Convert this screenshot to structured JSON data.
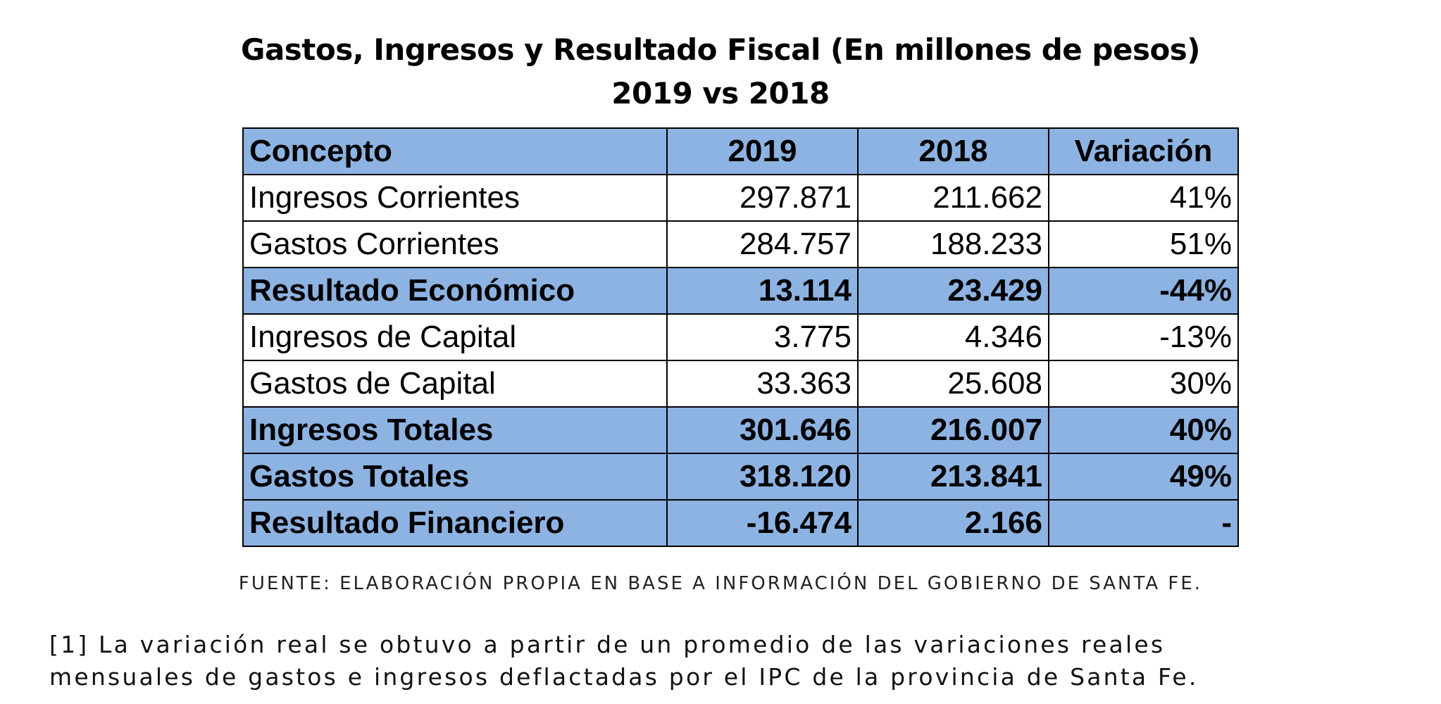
{
  "title": {
    "line1": "Gastos, Ingresos y Resultado Fiscal (En millones de pesos)",
    "line2": "2019 vs 2018"
  },
  "chart_data": {
    "type": "table",
    "columns": [
      "Concepto",
      "2019",
      "2018",
      "Variación"
    ],
    "rows": [
      {
        "concepto": "Ingresos Corrientes",
        "y2019": "297.871",
        "y2018": "211.662",
        "variacion": "41%",
        "highlight": false
      },
      {
        "concepto": "Gastos Corrientes",
        "y2019": "284.757",
        "y2018": "188.233",
        "variacion": "51%",
        "highlight": false
      },
      {
        "concepto": "Resultado Económico",
        "y2019": "13.114",
        "y2018": "23.429",
        "variacion": "-44%",
        "highlight": true
      },
      {
        "concepto": "Ingresos de Capital",
        "y2019": "3.775",
        "y2018": "4.346",
        "variacion": "-13%",
        "highlight": false
      },
      {
        "concepto": "Gastos de Capital",
        "y2019": "33.363",
        "y2018": "25.608",
        "variacion": "30%",
        "highlight": false
      },
      {
        "concepto": "Ingresos Totales",
        "y2019": "301.646",
        "y2018": "216.007",
        "variacion": "40%",
        "highlight": true
      },
      {
        "concepto": "Gastos Totales",
        "y2019": "318.120",
        "y2018": "213.841",
        "variacion": "49%",
        "highlight": true
      },
      {
        "concepto": "Resultado Financiero",
        "y2019": "-16.474",
        "y2018": "2.166",
        "variacion": "-",
        "highlight": true
      }
    ]
  },
  "source": "FUENTE: ELABORACIÓN PROPIA EN BASE A INFORMACIÓN DEL GOBIERNO DE SANTA FE.",
  "footnote": {
    "line1": "[1] La variación real se obtuvo a partir de un promedio de las variaciones reales",
    "line2": "mensuales de gastos e ingresos deflactadas por el IPC de la provincia de Santa Fe."
  },
  "colors": {
    "header_fill": "#8db3e2",
    "border": "#000000"
  }
}
